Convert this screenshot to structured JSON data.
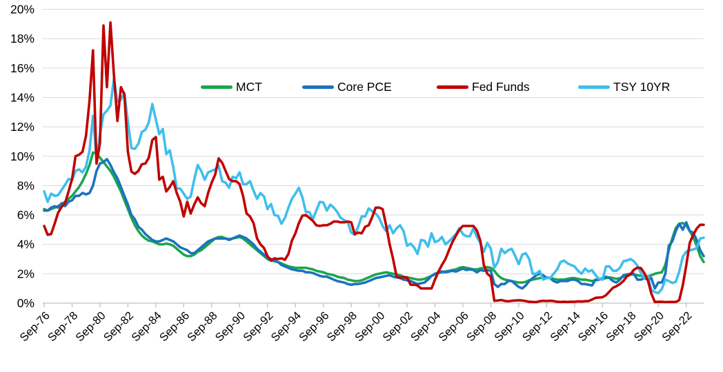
{
  "colors": {
    "background": "#FFFFFF",
    "grid": "#D9D9D9",
    "axis": "#BFBFBF",
    "text": "#000000"
  },
  "chart_data": {
    "type": "line",
    "title": "",
    "x_start": "Sep-1976",
    "x_end": "Dec-2023",
    "x_step_months": 3,
    "grid": "horizontal",
    "legend_position": "top-center-inside",
    "ylim": [
      0,
      20
    ],
    "y_unit": "%",
    "y_ticks": [
      "0%",
      "2%",
      "4%",
      "6%",
      "8%",
      "10%",
      "12%",
      "14%",
      "16%",
      "18%",
      "20%"
    ],
    "x_tick_every_points": 8,
    "x_tick_labels": [
      "Sep-76",
      "Sep-78",
      "Sep-80",
      "Sep-82",
      "Sep-84",
      "Sep-86",
      "Sep-88",
      "Sep-90",
      "Sep-92",
      "Sep-94",
      "Sep-96",
      "Sep-98",
      "Sep-00",
      "Sep-02",
      "Sep-04",
      "Sep-06",
      "Sep-08",
      "Sep-10",
      "Sep-12",
      "Sep-14",
      "Sep-16",
      "Sep-18",
      "Sep-20",
      "Sep-22"
    ],
    "series": [
      {
        "name": "MCT",
        "color": "#1AA64D",
        "values": [
          6.4,
          6.3,
          6.4,
          6.5,
          6.6,
          6.75,
          6.9,
          7.1,
          7.3,
          7.6,
          7.9,
          8.3,
          8.8,
          9.4,
          10.25,
          10.2,
          9.9,
          9.6,
          9.3,
          9.0,
          8.6,
          8.1,
          7.6,
          7.0,
          6.4,
          5.8,
          5.3,
          4.9,
          4.6,
          4.4,
          4.25,
          4.2,
          4.1,
          4.0,
          4.0,
          4.05,
          4.0,
          3.9,
          3.7,
          3.5,
          3.3,
          3.2,
          3.2,
          3.3,
          3.5,
          3.6,
          3.8,
          4.0,
          4.2,
          4.4,
          4.5,
          4.5,
          4.4,
          4.35,
          4.4,
          4.45,
          4.5,
          4.4,
          4.2,
          4.0,
          3.8,
          3.6,
          3.4,
          3.2,
          3.0,
          2.9,
          2.85,
          2.8,
          2.7,
          2.6,
          2.5,
          2.45,
          2.4,
          2.4,
          2.4,
          2.4,
          2.35,
          2.3,
          2.2,
          2.15,
          2.1,
          2.0,
          1.95,
          1.9,
          1.8,
          1.75,
          1.7,
          1.6,
          1.55,
          1.5,
          1.5,
          1.55,
          1.65,
          1.75,
          1.85,
          1.95,
          2.0,
          2.05,
          2.1,
          2.05,
          2.0,
          1.95,
          1.9,
          1.8,
          1.75,
          1.7,
          1.65,
          1.6,
          1.6,
          1.65,
          1.75,
          1.85,
          1.95,
          2.05,
          2.1,
          2.15,
          2.2,
          2.25,
          2.3,
          2.4,
          2.45,
          2.4,
          2.35,
          2.3,
          2.3,
          2.35,
          2.4,
          2.45,
          2.4,
          2.2,
          1.9,
          1.7,
          1.6,
          1.55,
          1.5,
          1.45,
          1.4,
          1.4,
          1.45,
          1.55,
          1.6,
          1.65,
          1.7,
          1.75,
          1.75,
          1.7,
          1.65,
          1.6,
          1.6,
          1.6,
          1.65,
          1.7,
          1.7,
          1.65,
          1.6,
          1.6,
          1.55,
          1.5,
          1.55,
          1.6,
          1.65,
          1.7,
          1.75,
          1.7,
          1.65,
          1.7,
          1.8,
          1.9,
          1.95,
          1.95,
          1.9,
          1.85,
          1.8,
          1.8,
          1.9,
          2.0,
          2.05,
          2.1,
          2.6,
          3.6,
          4.4,
          5.1,
          5.4,
          5.45,
          5.3,
          4.9,
          4.5,
          3.9,
          3.2,
          2.8
        ]
      },
      {
        "name": "Core PCE",
        "color": "#1B73BE",
        "values": [
          6.3,
          6.3,
          6.5,
          6.6,
          6.5,
          6.8,
          6.6,
          6.9,
          7.0,
          7.3,
          7.3,
          7.5,
          7.4,
          7.5,
          8.0,
          9.0,
          9.5,
          9.6,
          9.8,
          9.4,
          8.9,
          8.5,
          7.9,
          7.3,
          6.7,
          6.0,
          5.7,
          5.2,
          5.0,
          4.7,
          4.5,
          4.3,
          4.2,
          4.2,
          4.3,
          4.4,
          4.3,
          4.2,
          4.0,
          3.8,
          3.7,
          3.6,
          3.4,
          3.4,
          3.6,
          3.8,
          4.0,
          4.2,
          4.3,
          4.4,
          4.4,
          4.4,
          4.4,
          4.3,
          4.4,
          4.5,
          4.6,
          4.5,
          4.4,
          4.2,
          4.0,
          3.7,
          3.5,
          3.3,
          3.1,
          3.0,
          2.9,
          2.8,
          2.6,
          2.5,
          2.4,
          2.3,
          2.25,
          2.2,
          2.2,
          2.1,
          2.1,
          2.05,
          1.95,
          1.85,
          1.8,
          1.8,
          1.7,
          1.6,
          1.5,
          1.45,
          1.4,
          1.3,
          1.25,
          1.3,
          1.3,
          1.35,
          1.4,
          1.5,
          1.6,
          1.7,
          1.75,
          1.8,
          1.85,
          1.9,
          1.8,
          1.75,
          1.7,
          1.6,
          1.55,
          1.5,
          1.4,
          1.3,
          1.35,
          1.4,
          1.6,
          1.85,
          2.0,
          2.1,
          2.15,
          2.1,
          2.15,
          2.2,
          2.15,
          2.25,
          2.35,
          2.25,
          2.3,
          2.25,
          2.1,
          2.25,
          2.2,
          2.25,
          2.2,
          1.3,
          1.1,
          1.3,
          1.3,
          1.5,
          1.5,
          1.3,
          1.1,
          1.0,
          1.2,
          1.5,
          1.7,
          1.9,
          2.0,
          1.9,
          1.7,
          1.7,
          1.5,
          1.4,
          1.5,
          1.5,
          1.5,
          1.6,
          1.6,
          1.5,
          1.3,
          1.3,
          1.25,
          1.2,
          1.6,
          1.6,
          1.7,
          1.8,
          1.7,
          1.5,
          1.4,
          1.6,
          1.9,
          1.95,
          2.0,
          2.0,
          1.6,
          1.6,
          1.7,
          1.6,
          1.7,
          1.0,
          1.4,
          1.4,
          2.0,
          3.9,
          4.2,
          4.9,
          5.4,
          5.0,
          5.5,
          4.9,
          4.8,
          4.3,
          3.6,
          3.2
        ]
      },
      {
        "name": "Fed Funds",
        "color": "#C00000",
        "values": [
          5.25,
          4.65,
          4.7,
          5.4,
          6.15,
          6.55,
          6.8,
          7.6,
          8.45,
          10.0,
          10.1,
          10.3,
          11.4,
          13.8,
          17.2,
          9.5,
          10.9,
          18.9,
          14.7,
          19.1,
          15.5,
          12.4,
          14.7,
          14.2,
          10.3,
          8.95,
          8.8,
          9.0,
          9.45,
          9.5,
          9.9,
          11.1,
          11.3,
          8.4,
          8.6,
          7.6,
          7.9,
          8.3,
          7.5,
          6.9,
          5.9,
          6.9,
          6.1,
          6.7,
          7.2,
          6.8,
          6.6,
          7.5,
          8.2,
          8.75,
          9.85,
          9.55,
          9.0,
          8.45,
          8.3,
          8.3,
          8.1,
          7.3,
          6.1,
          5.9,
          5.45,
          4.4,
          4.0,
          3.75,
          3.2,
          2.9,
          3.05,
          3.0,
          3.05,
          2.95,
          3.35,
          4.25,
          4.75,
          5.45,
          5.95,
          6.0,
          5.8,
          5.6,
          5.3,
          5.25,
          5.3,
          5.3,
          5.4,
          5.55,
          5.55,
          5.5,
          5.5,
          5.55,
          5.5,
          4.7,
          4.8,
          4.75,
          5.2,
          5.3,
          5.85,
          6.5,
          6.5,
          6.4,
          5.3,
          4.0,
          3.0,
          1.8,
          1.75,
          1.75,
          1.75,
          1.25,
          1.25,
          1.2,
          1.0,
          1.0,
          1.0,
          1.0,
          1.6,
          2.15,
          2.6,
          3.0,
          3.6,
          4.15,
          4.6,
          5.0,
          5.25,
          5.25,
          5.25,
          5.25,
          4.95,
          4.25,
          2.6,
          2.0,
          1.8,
          0.16,
          0.18,
          0.21,
          0.15,
          0.12,
          0.16,
          0.18,
          0.19,
          0.18,
          0.14,
          0.09,
          0.08,
          0.07,
          0.13,
          0.16,
          0.14,
          0.16,
          0.14,
          0.09,
          0.08,
          0.09,
          0.08,
          0.1,
          0.09,
          0.12,
          0.11,
          0.13,
          0.14,
          0.24,
          0.36,
          0.38,
          0.4,
          0.54,
          0.79,
          1.04,
          1.15,
          1.3,
          1.51,
          1.82,
          1.95,
          2.27,
          2.41,
          2.38,
          2.04,
          1.55,
          0.65,
          0.08,
          0.09,
          0.09,
          0.07,
          0.08,
          0.08,
          0.08,
          0.2,
          1.21,
          2.56,
          4.1,
          4.65,
          5.08,
          5.33,
          5.33
        ]
      },
      {
        "name": "TSY 10YR",
        "color": "#3FBEEC",
        "values": [
          7.6,
          6.9,
          7.45,
          7.3,
          7.35,
          7.7,
          8.05,
          8.45,
          8.4,
          9.0,
          9.1,
          8.9,
          9.3,
          10.4,
          12.75,
          9.8,
          11.5,
          12.85,
          13.1,
          13.45,
          15.3,
          13.7,
          13.85,
          14.3,
          12.35,
          10.55,
          10.5,
          10.85,
          11.65,
          11.8,
          12.3,
          13.55,
          12.5,
          11.5,
          11.85,
          10.15,
          10.4,
          9.25,
          7.8,
          7.8,
          7.45,
          7.1,
          7.25,
          8.4,
          9.4,
          9.0,
          8.4,
          8.9,
          9.0,
          9.1,
          9.35,
          8.3,
          8.2,
          7.85,
          8.6,
          8.5,
          8.9,
          8.1,
          8.1,
          8.3,
          7.65,
          7.1,
          7.5,
          7.25,
          6.4,
          6.75,
          6.0,
          5.95,
          5.4,
          5.8,
          6.5,
          7.1,
          7.45,
          7.85,
          7.2,
          6.2,
          6.2,
          5.7,
          6.3,
          6.9,
          6.85,
          6.3,
          6.7,
          6.5,
          6.2,
          5.8,
          5.65,
          5.5,
          4.8,
          4.65,
          5.2,
          5.9,
          5.9,
          6.45,
          6.25,
          6.1,
          5.8,
          5.25,
          4.9,
          5.3,
          4.75,
          5.1,
          5.3,
          4.9,
          3.9,
          4.05,
          3.8,
          3.35,
          4.3,
          4.25,
          3.85,
          4.75,
          4.15,
          4.25,
          4.5,
          4.0,
          4.2,
          4.45,
          4.7,
          5.1,
          4.7,
          4.55,
          4.55,
          5.1,
          4.5,
          4.1,
          3.5,
          4.1,
          3.7,
          2.4,
          2.8,
          3.7,
          3.4,
          3.6,
          3.7,
          3.2,
          2.65,
          3.3,
          3.4,
          3.0,
          2.0,
          2.0,
          2.2,
          1.6,
          1.7,
          1.7,
          2.0,
          2.3,
          2.8,
          2.9,
          2.7,
          2.6,
          2.5,
          2.2,
          2.0,
          2.35,
          2.15,
          2.25,
          1.9,
          1.65,
          1.6,
          2.5,
          2.5,
          2.2,
          2.2,
          2.4,
          2.85,
          2.9,
          3.0,
          2.85,
          2.55,
          2.05,
          1.7,
          1.85,
          0.9,
          0.75,
          0.68,
          0.95,
          1.6,
          1.5,
          1.37,
          1.45,
          2.15,
          3.15,
          3.5,
          3.6,
          3.65,
          3.75,
          4.4,
          4.45
        ]
      }
    ]
  }
}
